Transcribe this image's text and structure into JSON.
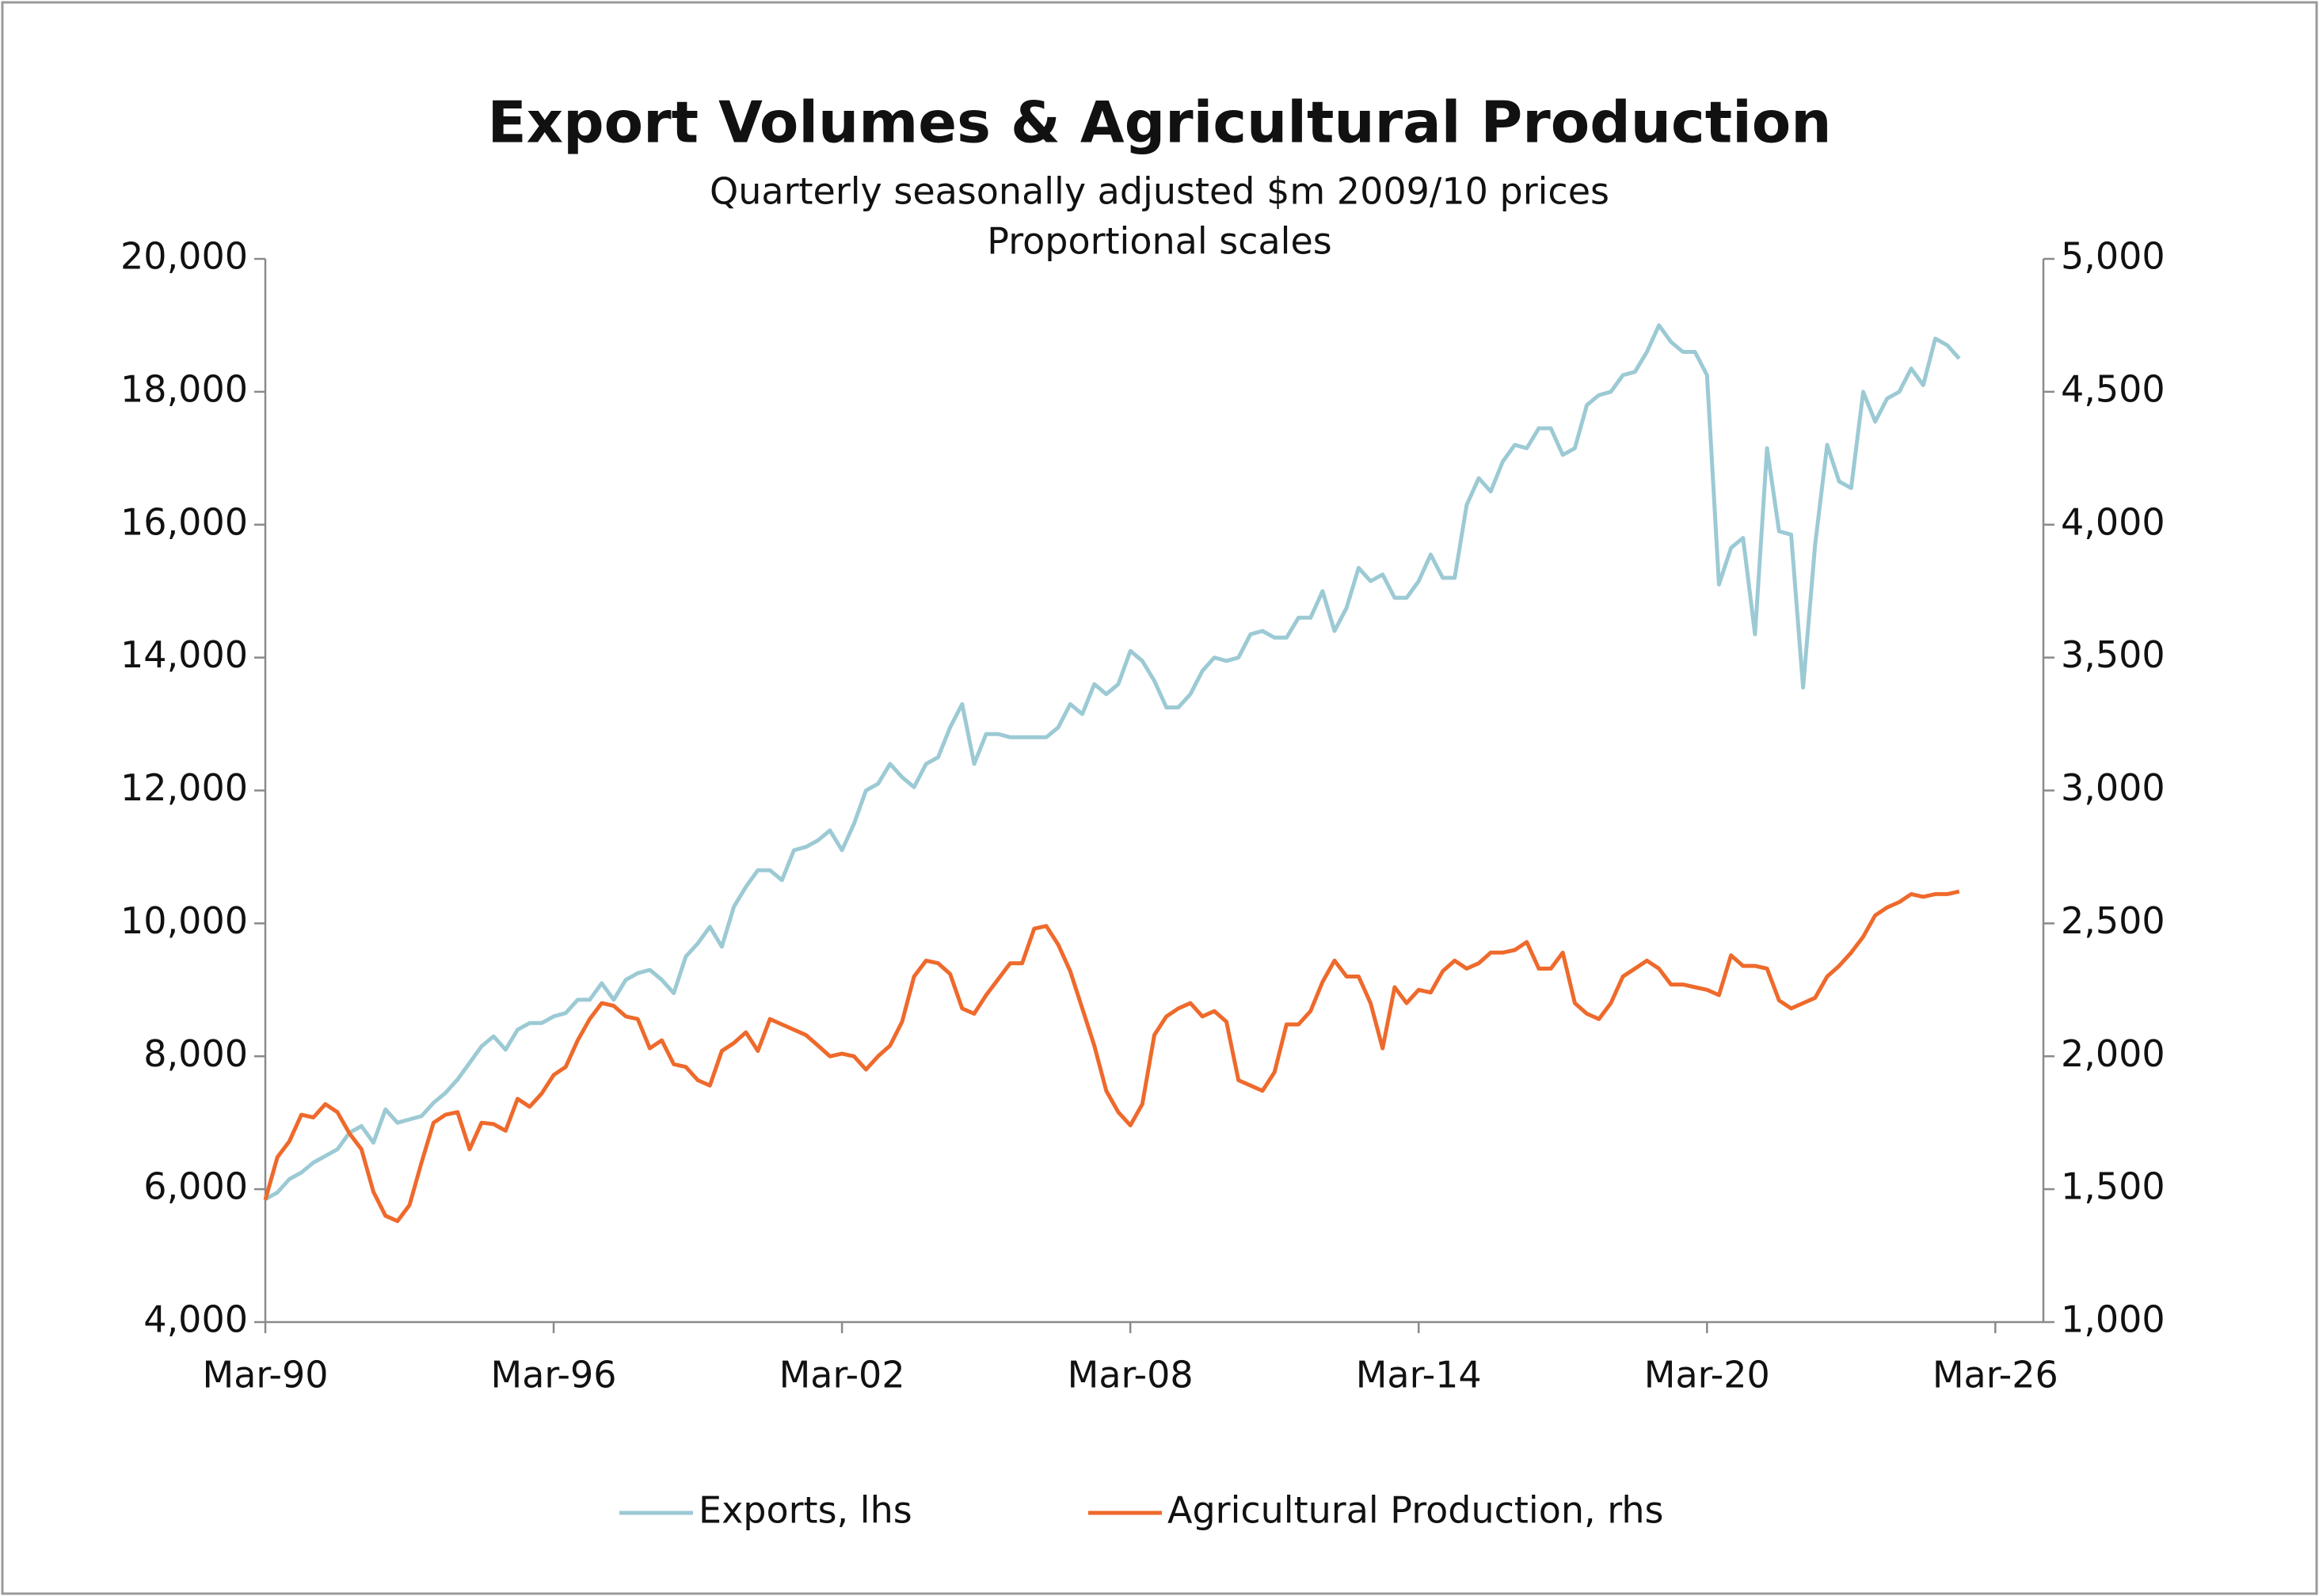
{
  "chart_data": {
    "type": "line",
    "title": "Export Volumes & Agricultural Production",
    "subtitle": [
      "Quarterly seasonally adjusted $m 2009/10 prices",
      "Proportional scales"
    ],
    "categories": [
      "Mar-90",
      null,
      null,
      null,
      null,
      null,
      null,
      null,
      null,
      null,
      null,
      null,
      null,
      null,
      null,
      null,
      null,
      null,
      null,
      null,
      null,
      null,
      null,
      null,
      "Mar-96",
      null,
      null,
      null,
      null,
      null,
      null,
      null,
      null,
      null,
      null,
      null,
      null,
      null,
      null,
      null,
      null,
      null,
      null,
      null,
      null,
      null,
      null,
      null,
      "Mar-02",
      null,
      null,
      null,
      null,
      null,
      null,
      null,
      null,
      null,
      null,
      null,
      null,
      null,
      null,
      null,
      null,
      null,
      null,
      null,
      null,
      null,
      null,
      null,
      "Mar-08",
      null,
      null,
      null,
      null,
      null,
      null,
      null,
      null,
      null,
      null,
      null,
      null,
      null,
      null,
      null,
      null,
      null,
      null,
      null,
      null,
      null,
      null,
      null,
      "Mar-14",
      null,
      null,
      null,
      null,
      null,
      null,
      null,
      null,
      null,
      null,
      null,
      null,
      null,
      null,
      null,
      null,
      null,
      null,
      null,
      null,
      null,
      null,
      null,
      "Mar-20",
      null,
      null,
      null,
      null,
      null,
      null,
      null,
      null,
      null,
      null,
      null,
      null,
      null,
      null,
      null,
      null,
      null,
      null,
      null,
      null,
      null,
      null,
      null,
      "Mar-26",
      null,
      null,
      null,
      null
    ],
    "series": [
      {
        "name": "Exports, lhs",
        "color": "#9ccad4",
        "axis": "y",
        "values": [
          5850,
          5950,
          6150,
          6250,
          6400,
          6500,
          6600,
          6850,
          6950,
          6700,
          7200,
          7000,
          7050,
          7100,
          7300,
          7450,
          7650,
          7900,
          8150,
          8300,
          8100,
          8400,
          8500,
          8500,
          8600,
          8650,
          8850,
          8850,
          9100,
          8850,
          9150,
          9250,
          9300,
          9150,
          8950,
          9500,
          9700,
          9950,
          9650,
          10250,
          10550,
          10800,
          10800,
          10650,
          11100,
          11150,
          11250,
          11400,
          11100,
          11500,
          12000,
          12100,
          12400,
          12200,
          12050,
          12400,
          12500,
          12950,
          13300,
          12400,
          12850,
          12850,
          12800,
          12800,
          12800,
          12800,
          12950,
          13300,
          13150,
          13600,
          13450,
          13600,
          14100,
          13950,
          13650,
          13250,
          13250,
          13450,
          13800,
          14000,
          13950,
          14000,
          14350,
          14400,
          14300,
          14300,
          14600,
          14600,
          15000,
          14400,
          14750,
          15350,
          15150,
          15250,
          14900,
          14900,
          15150,
          15550,
          15200,
          15200,
          16300,
          16700,
          16500,
          16950,
          17200,
          17150,
          17450,
          17450,
          17050,
          17150,
          17800,
          17950,
          18000,
          18250,
          18300,
          18600,
          19000,
          18750,
          18600,
          18600,
          18250,
          15100,
          15650,
          15800,
          14350,
          17150,
          15900,
          15850,
          13550,
          15700,
          17200,
          16650,
          16550,
          18000,
          17550,
          17900,
          18000,
          18350,
          18100,
          18800,
          18700,
          18500,
          null,
          null,
          null,
          null,
          null,
          null,
          null
        ]
      },
      {
        "name": "Agricultural Production, rhs",
        "color": "#ee6a2c",
        "axis": "y2",
        "values": [
          1460,
          1620,
          1680,
          1780,
          1770,
          1820,
          1790,
          1710,
          1650,
          1490,
          1400,
          1380,
          1440,
          1600,
          1750,
          1780,
          1790,
          1650,
          1750,
          1745,
          1720,
          1840,
          1810,
          1860,
          1930,
          1960,
          2060,
          2140,
          2200,
          2190,
          2150,
          2140,
          2030,
          2060,
          1970,
          1960,
          1910,
          1890,
          2020,
          2050,
          2090,
          2020,
          2140,
          2120,
          2100,
          2080,
          2040,
          2000,
          2010,
          2000,
          1950,
          2000,
          2040,
          2130,
          2300,
          2360,
          2350,
          2310,
          2180,
          2160,
          2230,
          2290,
          2350,
          2350,
          2480,
          2490,
          2420,
          2320,
          2180,
          2040,
          1870,
          1790,
          1740,
          1820,
          2080,
          2150,
          2180,
          2200,
          2150,
          2170,
          2130,
          1910,
          1890,
          1870,
          1940,
          2120,
          2120,
          2170,
          2280,
          2360,
          2300,
          2300,
          2200,
          2030,
          2260,
          2200,
          2250,
          2240,
          2320,
          2360,
          2330,
          2350,
          2390,
          2390,
          2400,
          2430,
          2330,
          2330,
          2390,
          2200,
          2160,
          2140,
          2200,
          2300,
          2330,
          2360,
          2330,
          2270,
          2270,
          2260,
          2250,
          2230,
          2380,
          2340,
          2340,
          2330,
          2210,
          2180,
          2200,
          2220,
          2300,
          2340,
          2390,
          2450,
          2530,
          2560,
          2580,
          2610,
          2600,
          2610,
          2610,
          2620,
          null,
          null,
          null,
          null,
          null,
          null,
          null
        ]
      }
    ],
    "ylim": [
      4000,
      20000
    ],
    "yticks": [
      {
        "value": 4000,
        "label": "4,000"
      },
      {
        "value": 6000,
        "label": "6,000"
      },
      {
        "value": 8000,
        "label": "8,000"
      },
      {
        "value": 10000,
        "label": "10,000"
      },
      {
        "value": 12000,
        "label": "12,000"
      },
      {
        "value": 14000,
        "label": "14,000"
      },
      {
        "value": 16000,
        "label": "16,000"
      },
      {
        "value": 18000,
        "label": "18,000"
      },
      {
        "value": 20000,
        "label": "20,000"
      }
    ],
    "y2lim": [
      1000,
      5000
    ],
    "y2ticks": [
      {
        "value": 1000,
        "label": "1,000"
      },
      {
        "value": 1500,
        "label": "1,500"
      },
      {
        "value": 2000,
        "label": "2,000"
      },
      {
        "value": 2500,
        "label": "2,500"
      },
      {
        "value": 3000,
        "label": "3,000"
      },
      {
        "value": 3500,
        "label": "3,500"
      },
      {
        "value": 4000,
        "label": "4,000"
      },
      {
        "value": 4500,
        "label": "4,500"
      },
      {
        "value": 5000,
        "label": "5,000"
      }
    ],
    "grid": false,
    "legend": "bottom"
  }
}
